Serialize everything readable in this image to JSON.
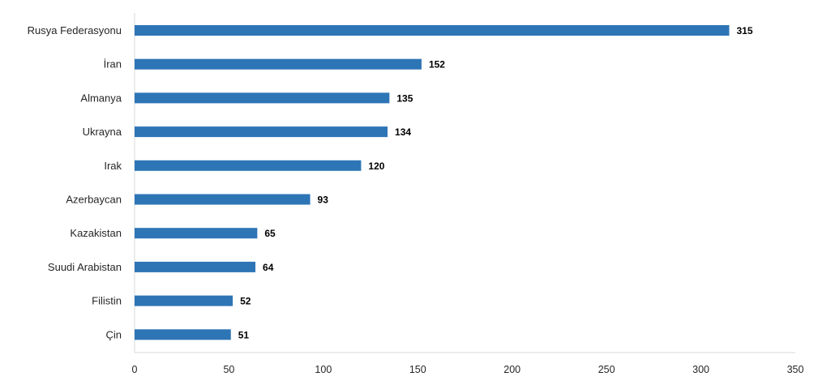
{
  "chart_data": {
    "type": "bar",
    "orientation": "horizontal",
    "categories": [
      "Rusya Federasyonu",
      "İran",
      "Almanya",
      "Ukrayna",
      "Irak",
      "Azerbaycan",
      "Kazakistan",
      "Suudi Arabistan",
      "Filistin",
      "Çin"
    ],
    "values": [
      315,
      152,
      135,
      134,
      120,
      93,
      65,
      64,
      52,
      51
    ],
    "title": "",
    "xlabel": "",
    "ylabel": "",
    "xlim": [
      0,
      350
    ],
    "xticks": [
      0,
      50,
      100,
      150,
      200,
      250,
      300,
      350
    ],
    "grid": false,
    "legend": "none",
    "data_labels": true,
    "colors": {
      "bar": "#2e75b6",
      "axis": "#d9d9d9",
      "text": "#262626"
    }
  }
}
